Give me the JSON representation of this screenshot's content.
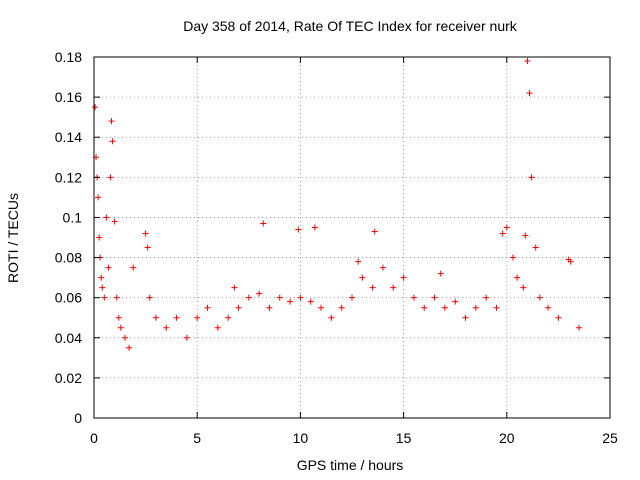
{
  "chart_data": {
    "type": "scatter",
    "title": "Day 358 of 2014, Rate Of TEC Index for receiver nurk",
    "xlabel": "GPS time / hours",
    "ylabel": "ROTI / TECUs",
    "xlim": [
      0,
      25
    ],
    "ylim": [
      0,
      0.18
    ],
    "x_ticks": [
      0,
      5,
      10,
      15,
      20,
      25
    ],
    "x_tick_labels": [
      "0",
      "5",
      "10",
      "15",
      "20",
      "25"
    ],
    "y_ticks": [
      0,
      0.02,
      0.04,
      0.06,
      0.08,
      0.1,
      0.12,
      0.14,
      0.16,
      0.18
    ],
    "y_tick_labels": [
      "0",
      "0.02",
      "0.04",
      "0.06",
      "0.08",
      "0.1",
      "0.12",
      "0.14",
      "0.16",
      "0.18"
    ],
    "grid": true,
    "marker": "+",
    "series": [
      {
        "name": "ROTI",
        "color": "#ff0000",
        "x": [
          0.05,
          0.1,
          0.15,
          0.2,
          0.25,
          0.3,
          0.35,
          0.4,
          0.5,
          0.6,
          0.7,
          0.8,
          0.85,
          0.9,
          1.0,
          1.1,
          1.2,
          1.3,
          1.5,
          1.7,
          1.9,
          2.5,
          2.6,
          2.7,
          3.0,
          3.5,
          4.0,
          4.5,
          5.0,
          5.5,
          6.0,
          6.5,
          6.8,
          7.0,
          7.5,
          8.0,
          8.2,
          8.5,
          9.0,
          9.5,
          9.9,
          10.0,
          10.5,
          10.7,
          11.0,
          11.5,
          12.0,
          12.5,
          12.8,
          13.0,
          13.5,
          13.6,
          14.0,
          14.5,
          15.0,
          15.5,
          16.0,
          16.5,
          16.8,
          17.0,
          17.5,
          18.0,
          18.5,
          19.0,
          19.5,
          19.8,
          20.0,
          20.3,
          20.5,
          20.8,
          20.9,
          21.0,
          21.1,
          21.2,
          21.4,
          21.6,
          22.0,
          22.5,
          23.0,
          23.1,
          23.5
        ],
        "y": [
          0.155,
          0.13,
          0.12,
          0.11,
          0.09,
          0.08,
          0.07,
          0.065,
          0.06,
          0.1,
          0.075,
          0.12,
          0.148,
          0.138,
          0.098,
          0.06,
          0.05,
          0.045,
          0.04,
          0.035,
          0.075,
          0.092,
          0.085,
          0.06,
          0.05,
          0.045,
          0.05,
          0.04,
          0.05,
          0.055,
          0.045,
          0.05,
          0.065,
          0.055,
          0.06,
          0.062,
          0.097,
          0.055,
          0.06,
          0.058,
          0.094,
          0.06,
          0.058,
          0.095,
          0.055,
          0.05,
          0.055,
          0.06,
          0.078,
          0.07,
          0.065,
          0.093,
          0.075,
          0.065,
          0.07,
          0.06,
          0.055,
          0.06,
          0.072,
          0.055,
          0.058,
          0.05,
          0.055,
          0.06,
          0.055,
          0.092,
          0.095,
          0.08,
          0.07,
          0.065,
          0.091,
          0.178,
          0.162,
          0.12,
          0.085,
          0.06,
          0.055,
          0.05,
          0.079,
          0.078,
          0.045
        ]
      }
    ]
  }
}
